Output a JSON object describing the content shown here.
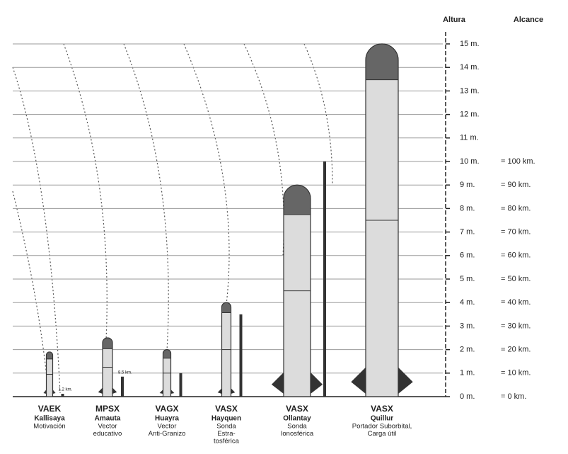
{
  "chart_data": {
    "type": "rocket",
    "y_label": "Altura",
    "y2_label": "Alcance",
    "models": [
      "VAEK",
      "MPSX",
      "VAGX",
      "VASX",
      "VASX",
      "VASX"
    ],
    "categories": [
      "Kallisaya",
      "Amauta",
      "Huayra",
      "Hayquen",
      "Ollantay",
      "Quillur"
    ],
    "descriptions": [
      [
        "Motivación"
      ],
      [
        "Vector",
        "educativo"
      ],
      [
        "Vector",
        "Anti-Granizo"
      ],
      [
        "Sonda",
        "Estra-",
        "tosférica"
      ],
      [
        "Sonda",
        "Ionosférica"
      ],
      [
        "Portador Suborbital,",
        "Carga útil"
      ]
    ],
    "series": [
      {
        "name": "Altura",
        "color": "#dcdcdc",
        "values": [
          1.9,
          2.5,
          2,
          4,
          9,
          15
        ]
      },
      {
        "name": "Alcance",
        "color": "#333333",
        "axis": "y2",
        "values": [
          1.2,
          8.5,
          10,
          35,
          100,
          null
        ],
        "value_labels": [
          "1.2 km.",
          "8.5 km.",
          null,
          null,
          null,
          null
        ]
      }
    ],
    "ylim": [
      0,
      15
    ],
    "yticks": [
      {
        "value": 0,
        "label": "0 m."
      },
      {
        "value": 1,
        "label": "1 m."
      },
      {
        "value": 2,
        "label": "2 m."
      },
      {
        "value": 3,
        "label": "3 m."
      },
      {
        "value": 4,
        "label": "4 m."
      },
      {
        "value": 5,
        "label": "5 m."
      },
      {
        "value": 6,
        "label": "6 m."
      },
      {
        "value": 7,
        "label": "7 m."
      },
      {
        "value": 8,
        "label": "8 m."
      },
      {
        "value": 9,
        "label": "9 m."
      },
      {
        "value": 10,
        "label": "10 m."
      },
      {
        "value": 11,
        "label": "11 m."
      },
      {
        "value": 12,
        "label": "12 m."
      },
      {
        "value": 13,
        "label": "13 m."
      },
      {
        "value": 14,
        "label": "14 m."
      },
      {
        "value": 15,
        "label": "15 m."
      }
    ],
    "y2lim": [
      0,
      150
    ],
    "y2ticks": [
      {
        "value": 0,
        "label": "= 0 km."
      },
      {
        "value": 10,
        "label": "= 10 km."
      },
      {
        "value": 20,
        "label": "= 20 km."
      },
      {
        "value": 30,
        "label": "= 30 km."
      },
      {
        "value": 40,
        "label": "= 40 km."
      },
      {
        "value": 50,
        "label": "= 50 km."
      },
      {
        "value": 60,
        "label": "= 60 km."
      },
      {
        "value": 70,
        "label": "= 70 km."
      },
      {
        "value": 80,
        "label": "= 80 km."
      },
      {
        "value": 90,
        "label": "= 90 km."
      },
      {
        "value": 100,
        "label": "= 100 km."
      }
    ],
    "grid": true
  }
}
